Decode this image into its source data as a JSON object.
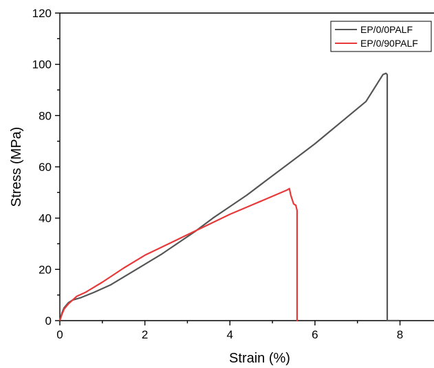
{
  "chart_data": {
    "type": "line",
    "xlabel": "Strain (%)",
    "ylabel": "Stress (MPa)",
    "xlim": [
      0,
      8.8
    ],
    "ylim": [
      0,
      120
    ],
    "x_ticks": [
      0,
      2,
      4,
      6,
      8
    ],
    "y_ticks": [
      0,
      20,
      40,
      60,
      80,
      100,
      120
    ],
    "legend_position": "top-right",
    "grid": false,
    "series": [
      {
        "name": "EP/0/0PALF",
        "color": "#555555",
        "x": [
          0,
          0.05,
          0.1,
          0.2,
          0.3,
          0.5,
          0.8,
          1.2,
          1.6,
          2.0,
          2.4,
          2.8,
          3.2,
          3.6,
          4.0,
          4.4,
          4.8,
          5.2,
          5.6,
          6.0,
          6.4,
          6.8,
          7.2,
          7.6,
          7.67,
          7.7,
          7.7,
          7.75,
          7.98
        ],
        "y": [
          0,
          3,
          5,
          7,
          8,
          9,
          11,
          14,
          18,
          22,
          26,
          30.5,
          35,
          40,
          44.5,
          49,
          54,
          59,
          64,
          69,
          74.5,
          80,
          85.5,
          96,
          96.5,
          96,
          0,
          0,
          0
        ]
      },
      {
        "name": "EP/0/90PALF",
        "color": "#e8393a",
        "x": [
          0,
          0.05,
          0.1,
          0.2,
          0.3,
          0.4,
          0.6,
          1.0,
          1.5,
          2.0,
          2.5,
          3.0,
          3.5,
          4.0,
          4.5,
          5.0,
          5.35,
          5.4,
          5.43,
          5.47,
          5.5,
          5.55,
          5.58,
          5.58,
          5.6
        ],
        "y": [
          0,
          2.5,
          4.5,
          6.5,
          8,
          9.5,
          11,
          15,
          20.5,
          25.5,
          29.5,
          33.5,
          37.5,
          41.5,
          45,
          48.5,
          51,
          51.5,
          49,
          47,
          45.5,
          45,
          43,
          0,
          0
        ]
      }
    ]
  }
}
